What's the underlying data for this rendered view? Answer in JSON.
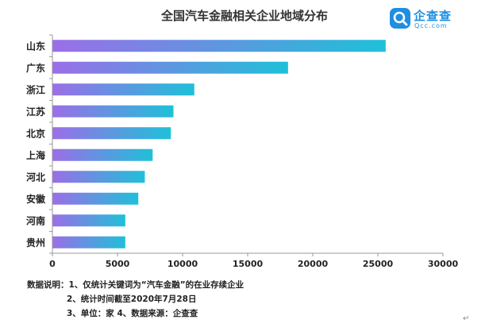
{
  "title": "全国汽车金融相关企业地域分布",
  "logo": {
    "brand": "企查查",
    "domain": "Qcc.com",
    "icon": "qcc-magnifier-logo-icon"
  },
  "chart_data": {
    "type": "bar",
    "orientation": "horizontal",
    "title": "全国汽车金融相关企业地域分布",
    "categories": [
      "山东",
      "广东",
      "浙江",
      "江苏",
      "北京",
      "上海",
      "河北",
      "安徽",
      "河南",
      "贵州"
    ],
    "values": [
      25600,
      18100,
      10900,
      9300,
      9100,
      7700,
      7100,
      6600,
      5600,
      5600
    ],
    "xlim": [
      0,
      30000
    ],
    "xticks": [
      0,
      5000,
      10000,
      15000,
      20000,
      25000,
      30000
    ],
    "grid": false,
    "bar_gradient": [
      "#9b6ee8",
      "#1fc0d8"
    ],
    "xlabel": "",
    "ylabel": ""
  },
  "notes": {
    "line1": "数据说明：1、仅统计关键词为“汽车金融”的在业存续企业",
    "line2": "2、统计时间截至2020年7月28日",
    "line3": "3、单位：家   4、数据来源：企查查"
  },
  "paragraph_mark": "↵"
}
